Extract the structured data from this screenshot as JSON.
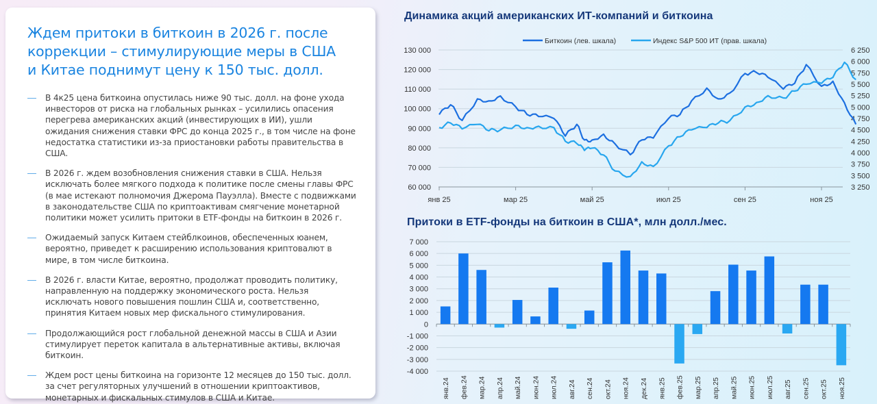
{
  "card": {
    "title": "Ждем притоки в биткоин в 2026 г. после коррекции – стимулирующие меры в США и Китае поднимут цену к 150 тыс. долл.",
    "title_lines": [
      "Ждем притоки в биткоин в 2026 г. после",
      "коррекции – стимулирующие меры в США",
      "и Китае поднимут цену к 150 тыс. долл."
    ],
    "bullet_marker": "—",
    "bullets": [
      "В 4к25 цена биткоина опустилась ниже 90 тыс. долл. на фоне ухода инвесторов от риска на глобальных рынках – усилились опасения перегрева американских акций (инвестирующих в ИИ), ушли ожидания снижения ставки ФРС до конца 2025 г., в том числе на фоне недостатка статистики из-за приостановки работы правительства в США.",
      "В 2026 г. ждем возобновления снижения ставки в США. Нельзя исключать более мягкого подхода к политике после смены главы ФРС (в мае истекают полномочия Джерома Пауэлла). Вместе с подвижками в законодательстве США по криптоактивам смягчение монетарной политики может усилить притоки в ETF-фонды на биткоин в 2026 г.",
      "Ожидаемый запуск Китаем стейблкоинов, обеспеченных юанем, вероятно, приведет к расширению использования криптовалют в мире, в том числе биткоина.",
      "В 2026 г. власти Китае, вероятно, продолжат проводить политику, направленную на поддержку экономического роста. Нельзя исключать нового повышения пошлин США и, соответственно, принятия Китаем новых мер фискального стимулирования.",
      "Продолжающийся рост глобальной денежной массы в США и Азии стимулирует переток капитала в альтернативные активы, включая биткоин.",
      "Ждем рост цены биткоина на горизонте 12 месяцев до 150 тыс. долл. за счет регуляторных улучшений в отношении криптоактивов, монетарных и фискальных стимулов в США и Китае."
    ]
  },
  "colors": {
    "title_blue": "#1a84e0",
    "chart_title_navy": "#15387a",
    "bitcoin_line": "#1c6fe0",
    "sp500_line": "#27a6ee",
    "bar_positive": "#1579f0",
    "bar_negative": "#2aa8f2"
  },
  "chart_data": [
    {
      "type": "line",
      "title": "Динамика акций американских ИТ-компаний и биткоина",
      "legend": [
        "Биткоин (лев. шкала)",
        "Индекс S&P 500 ИТ (прав. шкала)"
      ],
      "legend_position": "top",
      "grid": true,
      "x_tick_labels": [
        "янв 25",
        "мар 25",
        "май 25",
        "июл 25",
        "сен 25",
        "ноя 25"
      ],
      "y_left_ticks": [
        "130 000",
        "120 000",
        "110 000",
        "100 000",
        "90 000",
        "80 000",
        "70 000",
        "60 000"
      ],
      "y_right_ticks": [
        "6 250",
        "6 000",
        "5 750",
        "5 500",
        "5 250",
        "5 000",
        "4 750",
        "4 500",
        "4 250",
        "4 000",
        "3 750",
        "3 500",
        "3 250"
      ],
      "ylim_left": [
        60000,
        130000
      ],
      "ylim_right": [
        3250,
        6250
      ],
      "x": [
        0,
        0.3,
        0.6,
        1.0,
        1.3,
        1.6,
        2.0,
        2.3,
        2.6,
        3.0,
        3.3,
        3.6,
        3.8,
        4.0,
        4.3,
        4.6,
        5.0,
        5.3,
        5.6,
        6.0,
        6.3,
        6.6,
        7.0,
        7.3,
        7.6,
        8.0,
        8.3,
        8.6,
        9.0,
        9.3,
        9.6,
        10.0,
        10.3,
        10.6,
        10.9
      ],
      "series": [
        {
          "name": "Биткоин (лев. шкала)",
          "axis": "left",
          "values": [
            97000,
            102000,
            94000,
            105000,
            104000,
            106500,
            101000,
            97000,
            96000,
            95000,
            86000,
            92000,
            84000,
            84000,
            87000,
            82000,
            76500,
            84000,
            85000,
            95000,
            97000,
            104000,
            110500,
            105000,
            108000,
            118000,
            118500,
            116000,
            110000,
            113000,
            122500,
            111500,
            114000,
            103000,
            92000
          ]
        },
        {
          "name": "Индекс S&P 500 ИТ (прав. шкала)",
          "axis": "right",
          "values": [
            4550,
            4650,
            4520,
            4620,
            4480,
            4500,
            4600,
            4550,
            4580,
            4550,
            4250,
            4200,
            4050,
            4100,
            3950,
            3600,
            3480,
            3800,
            3700,
            4150,
            4350,
            4500,
            4550,
            4650,
            4700,
            5000,
            5100,
            5250,
            5200,
            5350,
            5500,
            5520,
            5650,
            5980,
            5600
          ]
        }
      ]
    },
    {
      "type": "bar",
      "title": "Притоки в ETF-фонды на биткоин в США*, млн долл./мес.",
      "categories": [
        "янв.24",
        "фев.24",
        "мар.24",
        "апр.24",
        "май.24",
        "июн.24",
        "июл.24",
        "авг.24",
        "сен.24",
        "окт.24",
        "ноя.24",
        "дек.24",
        "янв.25",
        "фев.25",
        "мар.25",
        "апр.25",
        "май.25",
        "июн.25",
        "июл.25",
        "авг.25",
        "сен.25",
        "окт.25",
        "ноя.25"
      ],
      "values": [
        1500,
        6000,
        4600,
        -300,
        2050,
        650,
        3100,
        -400,
        1150,
        5250,
        6250,
        4550,
        4300,
        -3350,
        -850,
        2800,
        5050,
        4550,
        5750,
        -800,
        3350,
        3350,
        -3500
      ],
      "y_ticks": [
        "7 000",
        "6 000",
        "5 000",
        "4 000",
        "3 000",
        "2 000",
        "1 000",
        "0",
        "-1 000",
        "-2 000",
        "-3 000",
        "-4 000"
      ],
      "ylim": [
        -4000,
        7000
      ],
      "xlabel": "",
      "ylabel": "",
      "grid": true
    }
  ]
}
